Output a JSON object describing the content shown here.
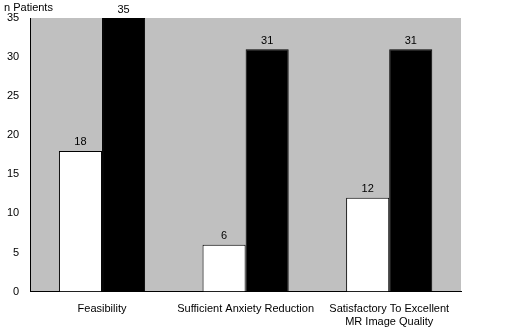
{
  "chart_data": {
    "type": "bar",
    "y_label": "n Patients",
    "categories": [
      "Feasibility",
      "Sufficient Anxiety Reduction",
      "Satisfactory To Excellent MR Image Quality"
    ],
    "series": [
      {
        "color": "#ffffff",
        "values": [
          18,
          6,
          12
        ]
      },
      {
        "color": "#000000",
        "values": [
          35,
          31,
          31
        ]
      }
    ],
    "ylim": [
      0,
      35
    ],
    "yticks": [
      0,
      5,
      10,
      15,
      20,
      25,
      30,
      35
    ],
    "grid": false,
    "data_labels": true
  }
}
